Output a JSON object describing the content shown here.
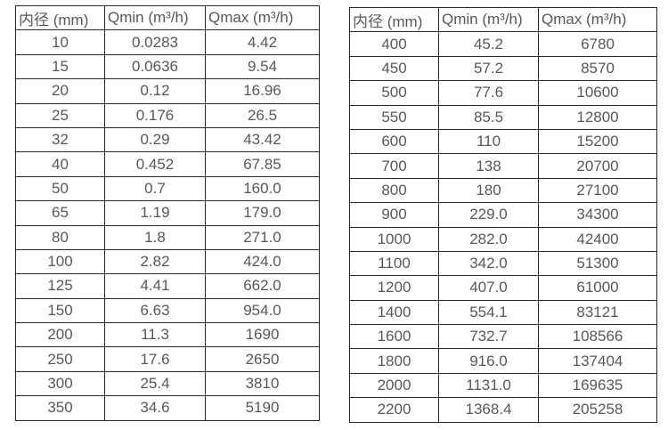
{
  "page": {
    "background_color": "#ffffff",
    "border_color": "#2a2a2a",
    "text_color": "#57585b"
  },
  "tables": [
    {
      "name": "flow-rate-table-small-diameters",
      "headers": [
        "内径 (mm)",
        "Qmin (m³/h)",
        "Qmax (m³/h)"
      ],
      "rows": [
        [
          "10",
          "0.0283",
          "4.42"
        ],
        [
          "15",
          "0.0636",
          "9.54"
        ],
        [
          "20",
          "0.12",
          "16.96"
        ],
        [
          "25",
          "0.176",
          "26.5"
        ],
        [
          "32",
          "0.29",
          "43.42"
        ],
        [
          "40",
          "0.452",
          "67.85"
        ],
        [
          "50",
          "0.7",
          "160.0"
        ],
        [
          "65",
          "1.19",
          "179.0"
        ],
        [
          "80",
          "1.8",
          "271.0"
        ],
        [
          "100",
          "2.82",
          "424.0"
        ],
        [
          "125",
          "4.41",
          "662.0"
        ],
        [
          "150",
          "6.63",
          "954.0"
        ],
        [
          "200",
          "11.3",
          "1690"
        ],
        [
          "250",
          "17.6",
          "2650"
        ],
        [
          "300",
          "25.4",
          "3810"
        ],
        [
          "350",
          "34.6",
          "5190"
        ]
      ]
    },
    {
      "name": "flow-rate-table-large-diameters",
      "headers": [
        "内径 (mm)",
        "Qmin (m³/h)",
        "Qmax (m³/h)"
      ],
      "rows": [
        [
          "400",
          "45.2",
          "6780"
        ],
        [
          "450",
          "57.2",
          "8570"
        ],
        [
          "500",
          "77.6",
          "10600"
        ],
        [
          "550",
          "85.5",
          "12800"
        ],
        [
          "600",
          "110",
          "15200"
        ],
        [
          "700",
          "138",
          "20700"
        ],
        [
          "800",
          "180",
          "27100"
        ],
        [
          "900",
          "229.0",
          "34300"
        ],
        [
          "1000",
          "282.0",
          "42400"
        ],
        [
          "1100",
          "342.0",
          "51300"
        ],
        [
          "1200",
          "407.0",
          "61000"
        ],
        [
          "1400",
          "554.1",
          "83121"
        ],
        [
          "1600",
          "732.7",
          "108566"
        ],
        [
          "1800",
          "916.0",
          "137404"
        ],
        [
          "2000",
          "1131.0",
          "169635"
        ],
        [
          "2200",
          "1368.4",
          "205258"
        ]
      ]
    }
  ]
}
